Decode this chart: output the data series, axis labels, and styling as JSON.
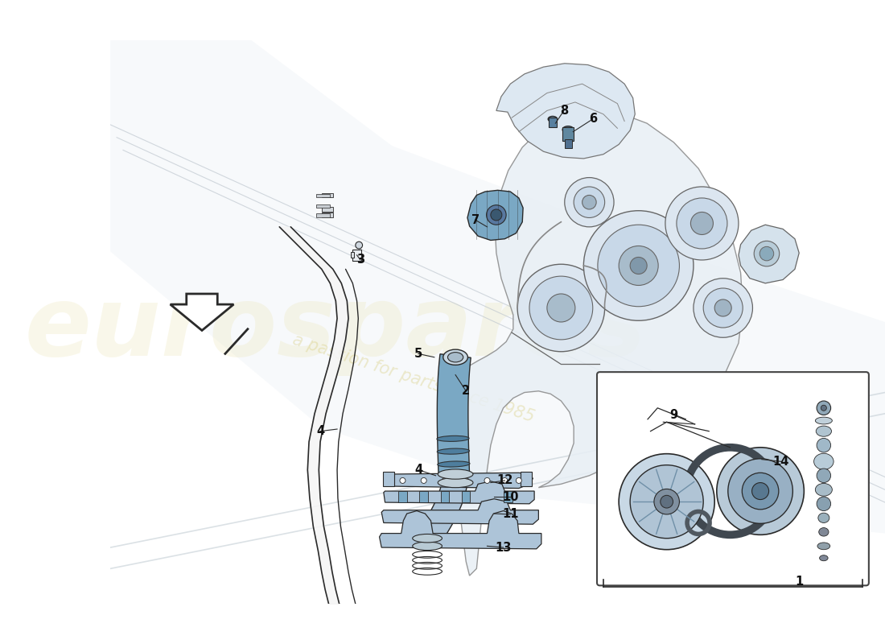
{
  "background_color": "#ffffff",
  "part_color_light": "#adc4d8",
  "part_color_mid": "#7aa8c4",
  "part_color_dark": "#4a7a9a",
  "line_color": "#2a2a2a",
  "watermark_color1": "#e8dfa0",
  "watermark_color2": "#d4c870",
  "figsize": [
    11.0,
    8.0
  ],
  "dpi": 100,
  "thin_pipe_color": "#f0f0f0",
  "engine_fill": "#dce8f0",
  "engine_outline": "#555555"
}
